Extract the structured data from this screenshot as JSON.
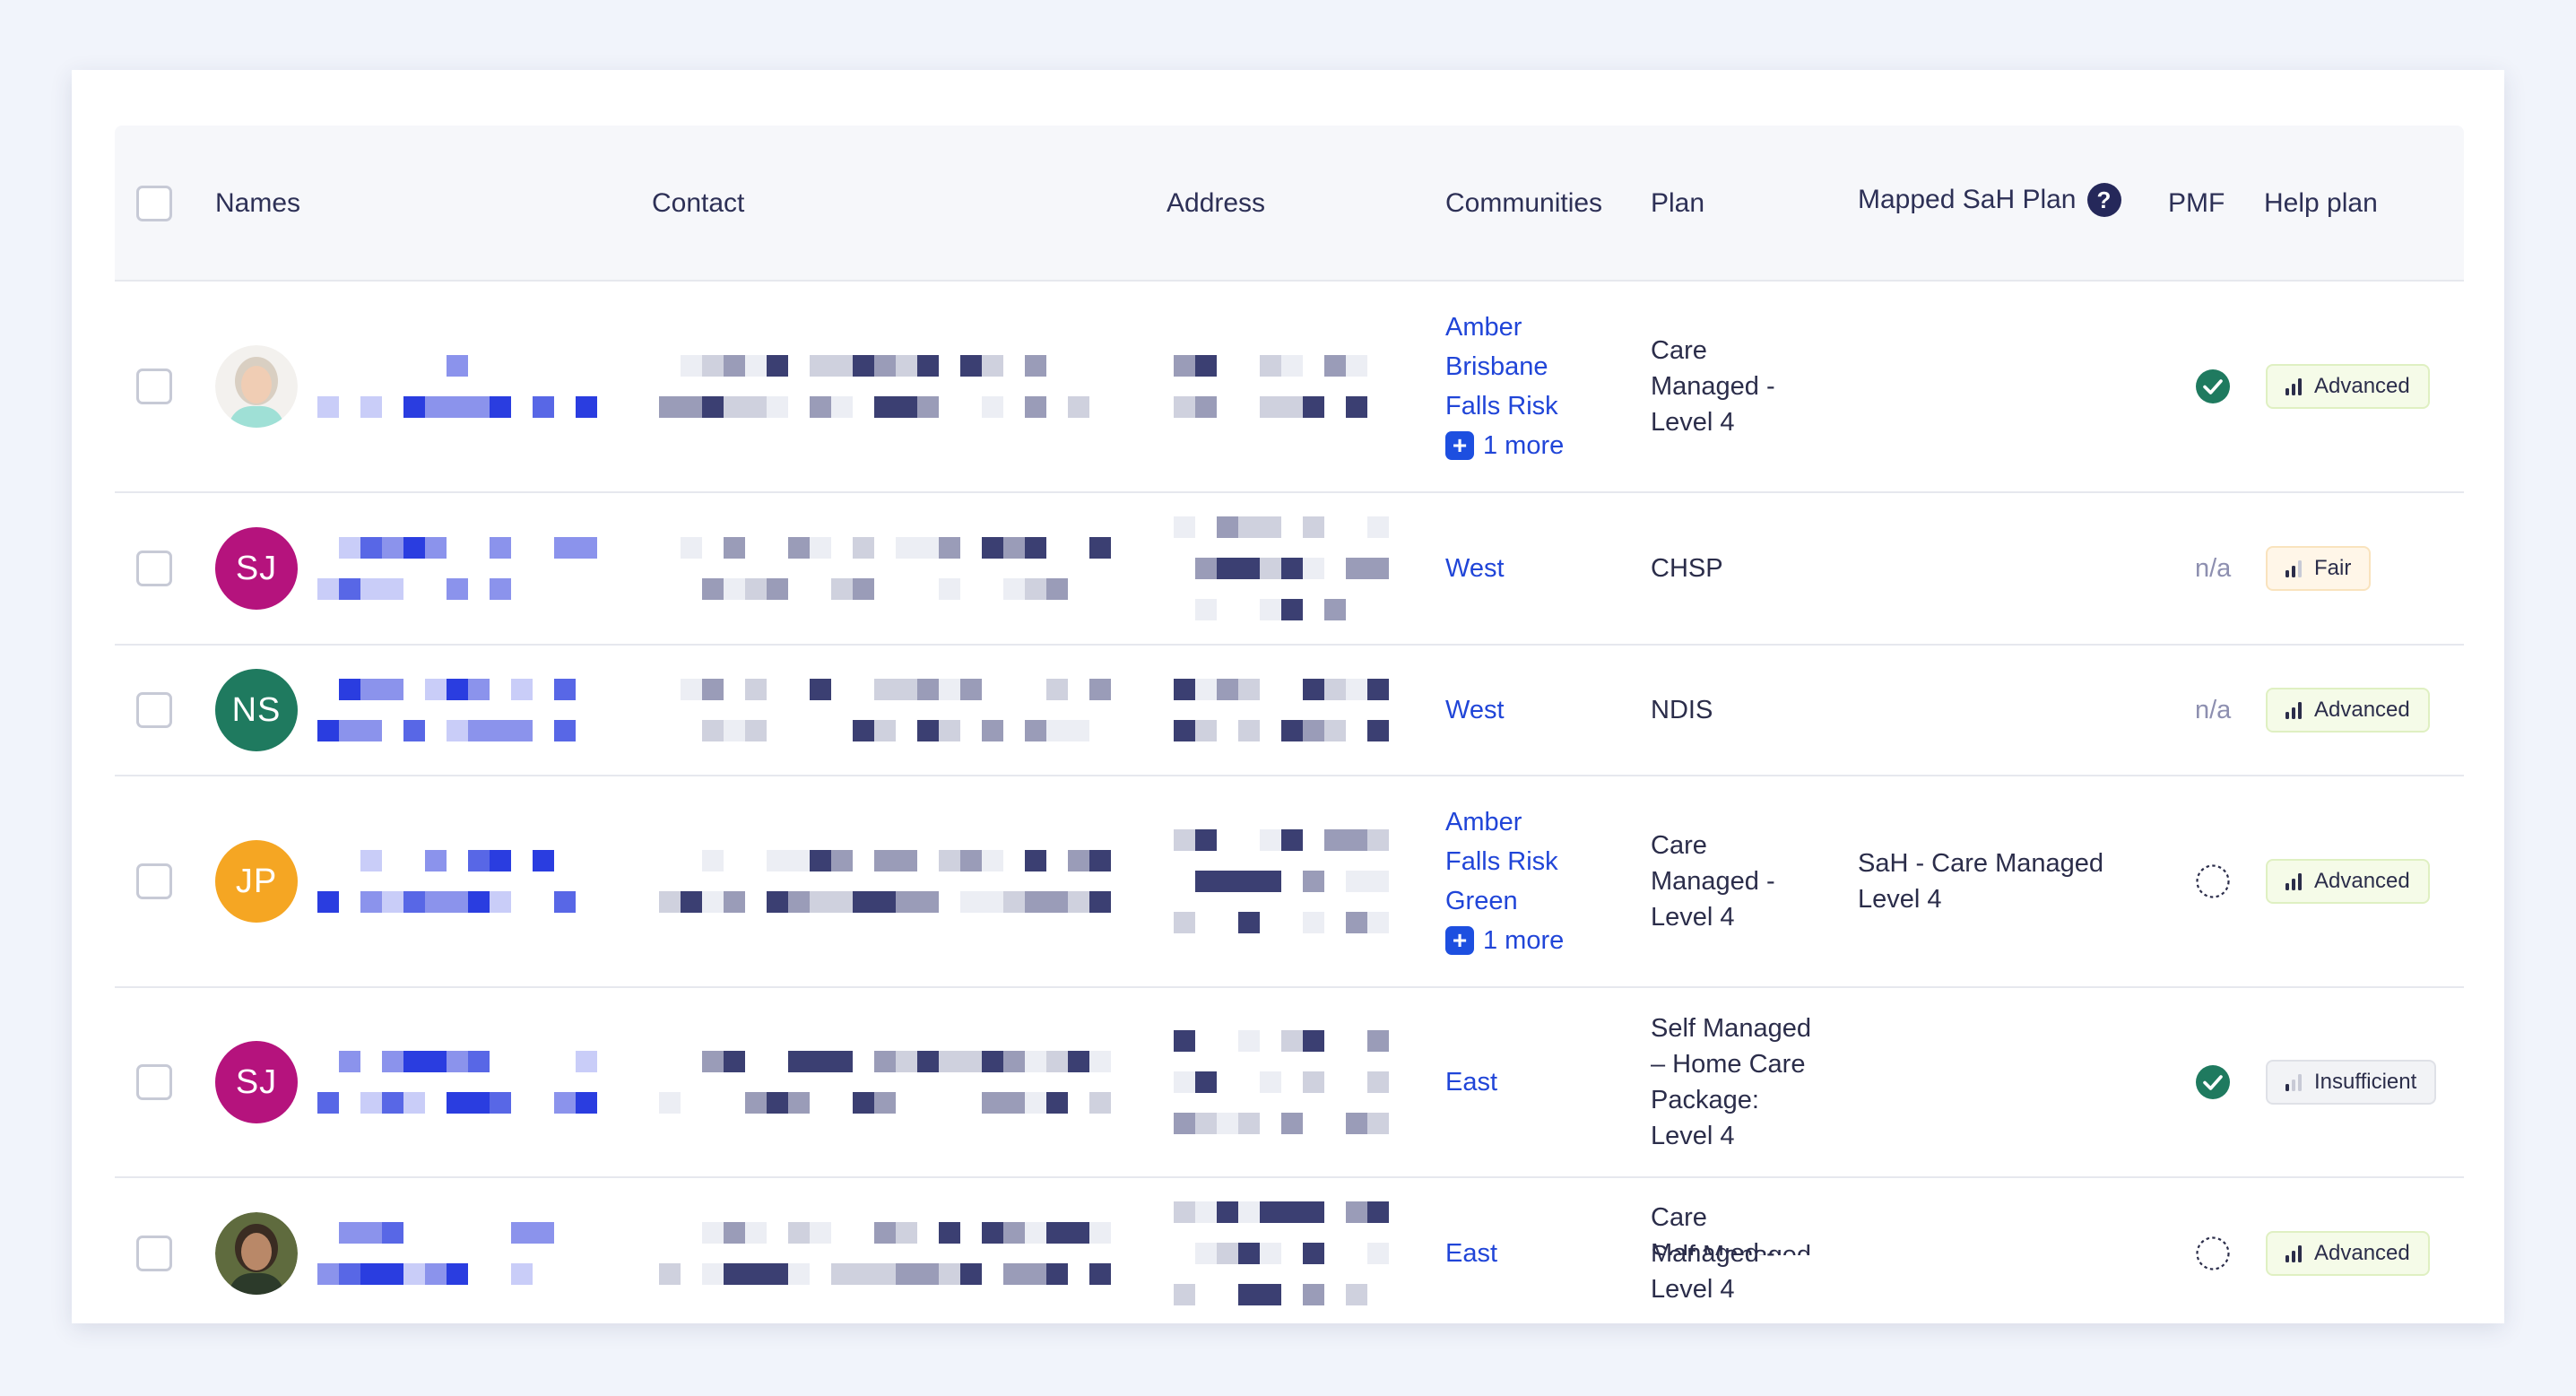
{
  "header": {
    "names": "Names",
    "contact": "Contact",
    "address": "Address",
    "communities": "Communities",
    "plan": "Plan",
    "mapped_sah_plan": "Mapped SaH Plan",
    "mapped_help": "?",
    "pmf": "PMF",
    "help_plan": "Help plan"
  },
  "rows": [
    {
      "avatar_type": "photo-light",
      "communities": [
        "Amber",
        "Brisbane",
        "Falls Risk"
      ],
      "more": "1 more",
      "plan": [
        "Care",
        "Managed -",
        "Level 4"
      ],
      "mapped": [],
      "pmf": "check",
      "pmf_label": "",
      "help": "Advanced",
      "help_level": 3
    },
    {
      "avatar_type": "initials",
      "initials": "SJ",
      "avatar_color": "#b5137d",
      "communities": [
        "West"
      ],
      "more": "",
      "plan": [
        "CHSP"
      ],
      "mapped": [],
      "pmf": "na",
      "pmf_label": "n/a",
      "help": "Fair",
      "help_level": 2
    },
    {
      "avatar_type": "initials",
      "initials": "NS",
      "avatar_color": "#1f7a5f",
      "communities": [
        "West"
      ],
      "more": "",
      "plan": [
        "NDIS"
      ],
      "mapped": [],
      "pmf": "na",
      "pmf_label": "n/a",
      "help": "Advanced",
      "help_level": 3
    },
    {
      "avatar_type": "initials",
      "initials": "JP",
      "avatar_color": "#f5a623",
      "communities": [
        "Amber",
        "Falls Risk",
        "Green"
      ],
      "more": "1 more",
      "plan": [
        "Care",
        "Managed -",
        "Level 4"
      ],
      "mapped": [
        "SaH - Care Managed",
        "Level 4"
      ],
      "pmf": "pending",
      "pmf_label": "",
      "help": "Advanced",
      "help_level": 3
    },
    {
      "avatar_type": "initials",
      "initials": "SJ",
      "avatar_color": "#b5137d",
      "communities": [
        "East"
      ],
      "more": "",
      "plan": [
        "Self Managed",
        "– Home Care",
        "Package:",
        "Level 4"
      ],
      "mapped": [],
      "pmf": "check",
      "pmf_label": "",
      "help": "Insufficient",
      "help_level": 1
    },
    {
      "avatar_type": "photo-dark",
      "communities": [
        "East"
      ],
      "more": "",
      "plan": [
        "Care",
        "Managed -",
        "Level 4"
      ],
      "mapped": [],
      "pmf": "pending",
      "pmf_label": "",
      "help": "Advanced",
      "help_level": 3
    }
  ],
  "partial_row_plan": "Self Managed",
  "colors": {
    "link": "#2045d8",
    "check_green": "#1f7a5f",
    "heading": "#2d3056",
    "pixel_blue": [
      "#c9cdf8",
      "#8b93ec",
      "#5867e6",
      "#2a3de0"
    ],
    "pixel_gray": [
      "#eceef4",
      "#cfd1de",
      "#9a9cb8",
      "#3b3f72"
    ]
  }
}
